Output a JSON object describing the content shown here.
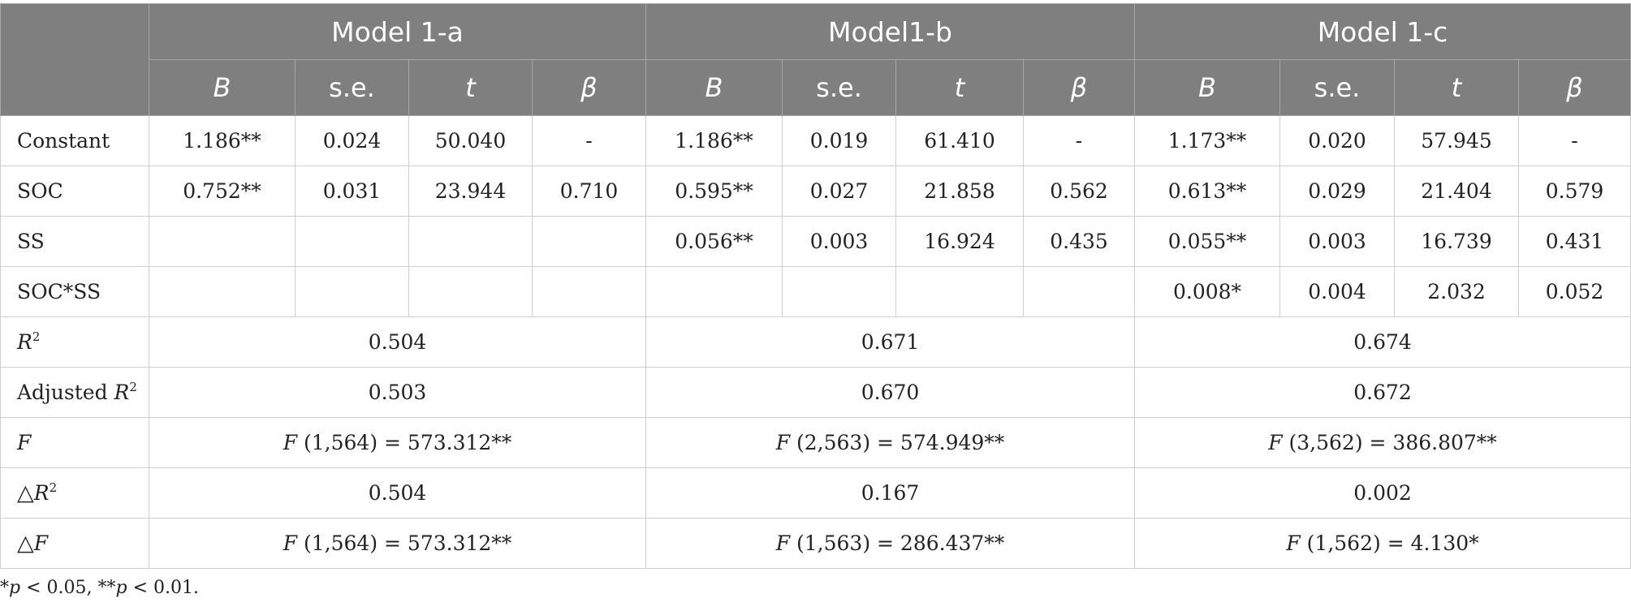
{
  "header": {
    "models": [
      "Model 1-a",
      "Model1-b",
      "Model 1-c"
    ],
    "stats": [
      "B",
      "s.e.",
      "t",
      "β"
    ]
  },
  "rows": [
    {
      "label": "Constant",
      "cells": [
        "1.186**",
        "0.024",
        "50.040",
        "-",
        "1.186**",
        "0.019",
        "61.410",
        "-",
        "1.173**",
        "0.020",
        "57.945",
        "-"
      ]
    },
    {
      "label": "SOC",
      "cells": [
        "0.752**",
        "0.031",
        "23.944",
        "0.710",
        "0.595**",
        "0.027",
        "21.858",
        "0.562",
        "0.613**",
        "0.029",
        "21.404",
        "0.579"
      ]
    },
    {
      "label": "SS",
      "cells": [
        "",
        "",
        "",
        "",
        "0.056**",
        "0.003",
        "16.924",
        "0.435",
        "0.055**",
        "0.003",
        "16.739",
        "0.431"
      ]
    },
    {
      "label": "SOC*SS",
      "cells": [
        "",
        "",
        "",
        "",
        "",
        "",
        "",
        "",
        "0.008*",
        "0.004",
        "2.032",
        "0.052"
      ]
    }
  ],
  "summary": {
    "r2": {
      "sym": "R",
      "sup": "2",
      "values": [
        "0.504",
        "0.671",
        "0.674"
      ]
    },
    "adj_r2": {
      "prefix": "Adjusted ",
      "sym": "R",
      "sup": "2",
      "values": [
        "0.503",
        "0.670",
        "0.672"
      ]
    },
    "f": {
      "sym": "F",
      "values": [
        {
          "sym": "F",
          "rest": " (1,564) = 573.312**"
        },
        {
          "sym": "F",
          "rest": " (2,563) = 574.949**"
        },
        {
          "sym": "F",
          "rest": " (3,562) = 386.807**"
        }
      ]
    },
    "delta_r2": {
      "tri": "△",
      "sym": "R",
      "sup": "2",
      "values": [
        "0.504",
        "0.167",
        "0.002"
      ]
    },
    "delta_f": {
      "tri": "△",
      "sym": "F",
      "values": [
        {
          "sym": "F",
          "rest": " (1,564) = 573.312**"
        },
        {
          "sym": "F",
          "rest": " (1,563) = 286.437**"
        },
        {
          "sym": "F",
          "rest": " (1,562) = 4.130*"
        }
      ]
    }
  },
  "footnote": {
    "a": "*",
    "p1": "p",
    "b": " < 0.05, **",
    "p2": "p",
    "c": " < 0.01."
  }
}
